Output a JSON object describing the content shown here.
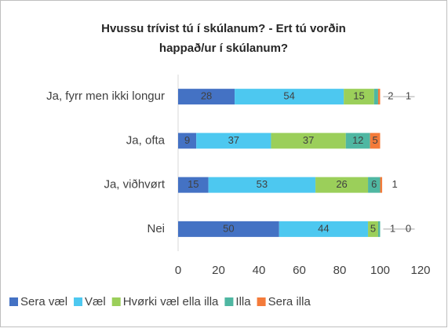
{
  "chart_data": {
    "type": "stacked-bar-horizontal",
    "title": [
      "Hvussu trívist tú í skúlanum? - Ert tú vorðin",
      "happað/ur í skúlanum?"
    ],
    "categories": [
      "Ja, fyrr men ikki longur",
      "Ja, ofta",
      "Ja, viðhvørt",
      "Nei"
    ],
    "series": [
      {
        "name": "Sera væl",
        "color": "#4472c4",
        "values": [
          28,
          9,
          15,
          50
        ]
      },
      {
        "name": "Væl",
        "color": "#4dc8f0",
        "values": [
          54,
          37,
          53,
          44
        ]
      },
      {
        "name": "Hvørki væl ella illa",
        "color": "#9bcf5a",
        "values": [
          15,
          37,
          26,
          5
        ]
      },
      {
        "name": "Illa",
        "color": "#4fb7a2",
        "values": [
          2,
          12,
          6,
          1
        ]
      },
      {
        "name": "Sera illa",
        "color": "#f47b3a",
        "values": [
          1,
          5,
          1,
          0
        ]
      }
    ],
    "xlim": [
      0,
      120
    ],
    "xticks": [
      0,
      20,
      40,
      60,
      80,
      100,
      120
    ],
    "grid": false,
    "legend": "bottom"
  }
}
